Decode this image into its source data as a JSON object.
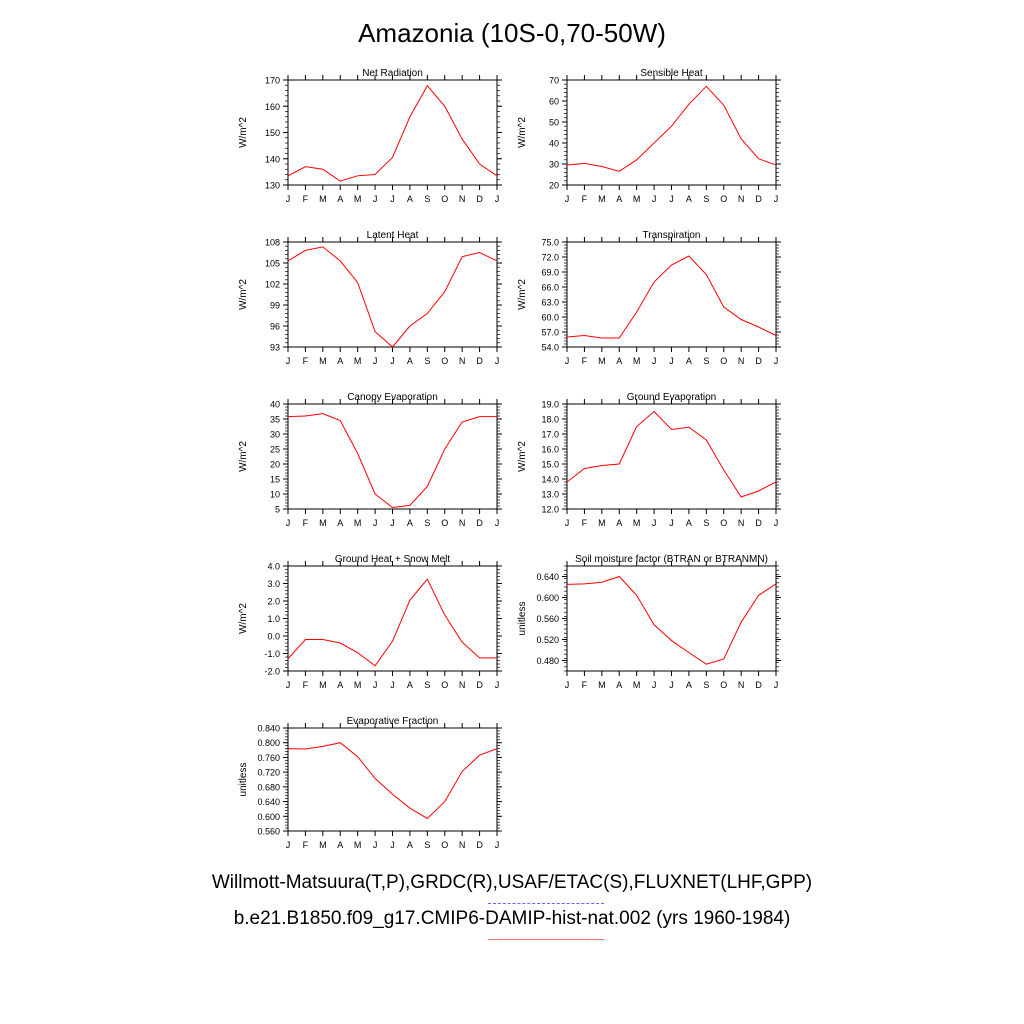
{
  "title": "Amazonia (10S-0,70-50W)",
  "legend": {
    "observations": "Willmott-Matsuura(T,P),GRDC(R),USAF/ETAC(S),FLUXNET(LHF,GPP)",
    "model": "b.e21.B1850.f09_g17.CMIP6-DAMIP-hist-nat.002 (yrs 1960-1984)"
  },
  "colors": {
    "model_line": "#ff0000",
    "observations_line": "#6666ff",
    "axis": "#000000"
  },
  "chart_data": [
    {
      "type": "line",
      "title": "Net Radiation",
      "ylabel": "W/m^2",
      "categories": [
        "J",
        "F",
        "M",
        "A",
        "M",
        "J",
        "J",
        "A",
        "S",
        "O",
        "N",
        "D",
        "J"
      ],
      "ylim": [
        130,
        170
      ],
      "yticks": [
        "130",
        "140",
        "150",
        "160",
        "170"
      ],
      "series": [
        {
          "values": [
            133.5,
            137,
            136,
            131.5,
            133.5,
            134,
            140.5,
            156,
            167.8,
            160,
            147.5,
            138,
            133.5
          ]
        }
      ]
    },
    {
      "type": "line",
      "title": "Sensible Heat",
      "ylabel": "W/m^2",
      "categories": [
        "J",
        "F",
        "M",
        "A",
        "M",
        "J",
        "J",
        "A",
        "S",
        "O",
        "N",
        "D",
        "J"
      ],
      "ylim": [
        20,
        70
      ],
      "yticks": [
        "20",
        "30",
        "40",
        "50",
        "60",
        "70"
      ],
      "series": [
        {
          "values": [
            29.5,
            30.3,
            28.8,
            26.5,
            32,
            40,
            48,
            58.5,
            67,
            58,
            42,
            32.5,
            29.5
          ]
        }
      ]
    },
    {
      "type": "line",
      "title": "Latent Heat",
      "ylabel": "W/m^2",
      "categories": [
        "J",
        "F",
        "M",
        "A",
        "M",
        "J",
        "J",
        "A",
        "S",
        "O",
        "N",
        "D",
        "J"
      ],
      "ylim": [
        93,
        108
      ],
      "yticks": [
        "93",
        "96",
        "99",
        "102",
        "105",
        "108"
      ],
      "series": [
        {
          "values": [
            105.3,
            106.8,
            107.3,
            105.3,
            102.2,
            95.2,
            93,
            96,
            97.8,
            100.9,
            105.9,
            106.5,
            105.3
          ]
        }
      ]
    },
    {
      "type": "line",
      "title": "Transpiration",
      "ylabel": "W/m^2",
      "categories": [
        "J",
        "F",
        "M",
        "A",
        "M",
        "J",
        "J",
        "A",
        "S",
        "O",
        "N",
        "D",
        "J"
      ],
      "ylim": [
        54,
        75
      ],
      "yticks": [
        "54.0",
        "57.0",
        "60.0",
        "63.0",
        "66.0",
        "69.0",
        "72.0",
        "75.0"
      ],
      "series": [
        {
          "values": [
            56,
            56.3,
            55.8,
            55.8,
            61,
            67,
            70.4,
            72.2,
            68.5,
            62,
            59.5,
            58,
            56.3
          ]
        }
      ]
    },
    {
      "type": "line",
      "title": "Canopy Evaporation",
      "ylabel": "W/m^2",
      "categories": [
        "J",
        "F",
        "M",
        "A",
        "M",
        "J",
        "J",
        "A",
        "S",
        "O",
        "N",
        "D",
        "J"
      ],
      "ylim": [
        5,
        40
      ],
      "yticks": [
        "5",
        "10",
        "15",
        "20",
        "25",
        "30",
        "35",
        "40"
      ],
      "series": [
        {
          "values": [
            35.8,
            36,
            36.8,
            34.5,
            23.5,
            10,
            5.5,
            6.2,
            12.5,
            25,
            34,
            35.8,
            35.8
          ]
        }
      ]
    },
    {
      "type": "line",
      "title": "Ground Evaporation",
      "ylabel": "W/m^2",
      "categories": [
        "J",
        "F",
        "M",
        "A",
        "M",
        "J",
        "J",
        "A",
        "S",
        "O",
        "N",
        "D",
        "J"
      ],
      "ylim": [
        12,
        19
      ],
      "yticks": [
        "12.0",
        "13.0",
        "14.0",
        "15.0",
        "16.0",
        "17.0",
        "18.0",
        "19.0"
      ],
      "series": [
        {
          "values": [
            13.8,
            14.7,
            14.9,
            15,
            17.5,
            18.5,
            17.3,
            17.45,
            16.6,
            14.6,
            12.8,
            13.2,
            13.8
          ]
        }
      ]
    },
    {
      "type": "line",
      "title": "Ground Heat + Snow Melt",
      "ylabel": "W/m^2",
      "categories": [
        "J",
        "F",
        "M",
        "A",
        "M",
        "J",
        "J",
        "A",
        "S",
        "O",
        "N",
        "D",
        "J"
      ],
      "ylim": [
        -2,
        4
      ],
      "yticks": [
        "-2.0",
        "-1.0",
        "0.0",
        "1.0",
        "2.0",
        "3.0",
        "4.0"
      ],
      "series": [
        {
          "values": [
            -1.3,
            -0.2,
            -0.2,
            -0.4,
            -0.95,
            -1.7,
            -0.3,
            2.05,
            3.25,
            1.2,
            -0.35,
            -1.25,
            -1.25
          ]
        }
      ]
    },
    {
      "type": "line",
      "title": "Soil moisture factor (BTRAN or BTRANMN)",
      "ylabel": "unitless",
      "categories": [
        "J",
        "F",
        "M",
        "A",
        "M",
        "J",
        "J",
        "A",
        "S",
        "O",
        "N",
        "D",
        "J"
      ],
      "ylim": [
        0.46,
        0.66
      ],
      "yticks": [
        "0.480",
        "0.520",
        "0.560",
        "0.600",
        "0.640"
      ],
      "series": [
        {
          "values": [
            0.625,
            0.626,
            0.629,
            0.64,
            0.604,
            0.548,
            0.518,
            0.495,
            0.473,
            0.483,
            0.553,
            0.604,
            0.626
          ]
        }
      ]
    },
    {
      "type": "line",
      "title": "Evaporative Fraction",
      "ylabel": "unitless",
      "categories": [
        "J",
        "F",
        "M",
        "A",
        "M",
        "J",
        "J",
        "A",
        "S",
        "O",
        "N",
        "D",
        "J"
      ],
      "ylim": [
        0.56,
        0.84
      ],
      "yticks": [
        "0.560",
        "0.600",
        "0.640",
        "0.680",
        "0.720",
        "0.760",
        "0.800",
        "0.840"
      ],
      "series": [
        {
          "values": [
            0.784,
            0.783,
            0.79,
            0.8,
            0.762,
            0.703,
            0.66,
            0.622,
            0.594,
            0.64,
            0.722,
            0.766,
            0.784
          ]
        }
      ]
    }
  ]
}
